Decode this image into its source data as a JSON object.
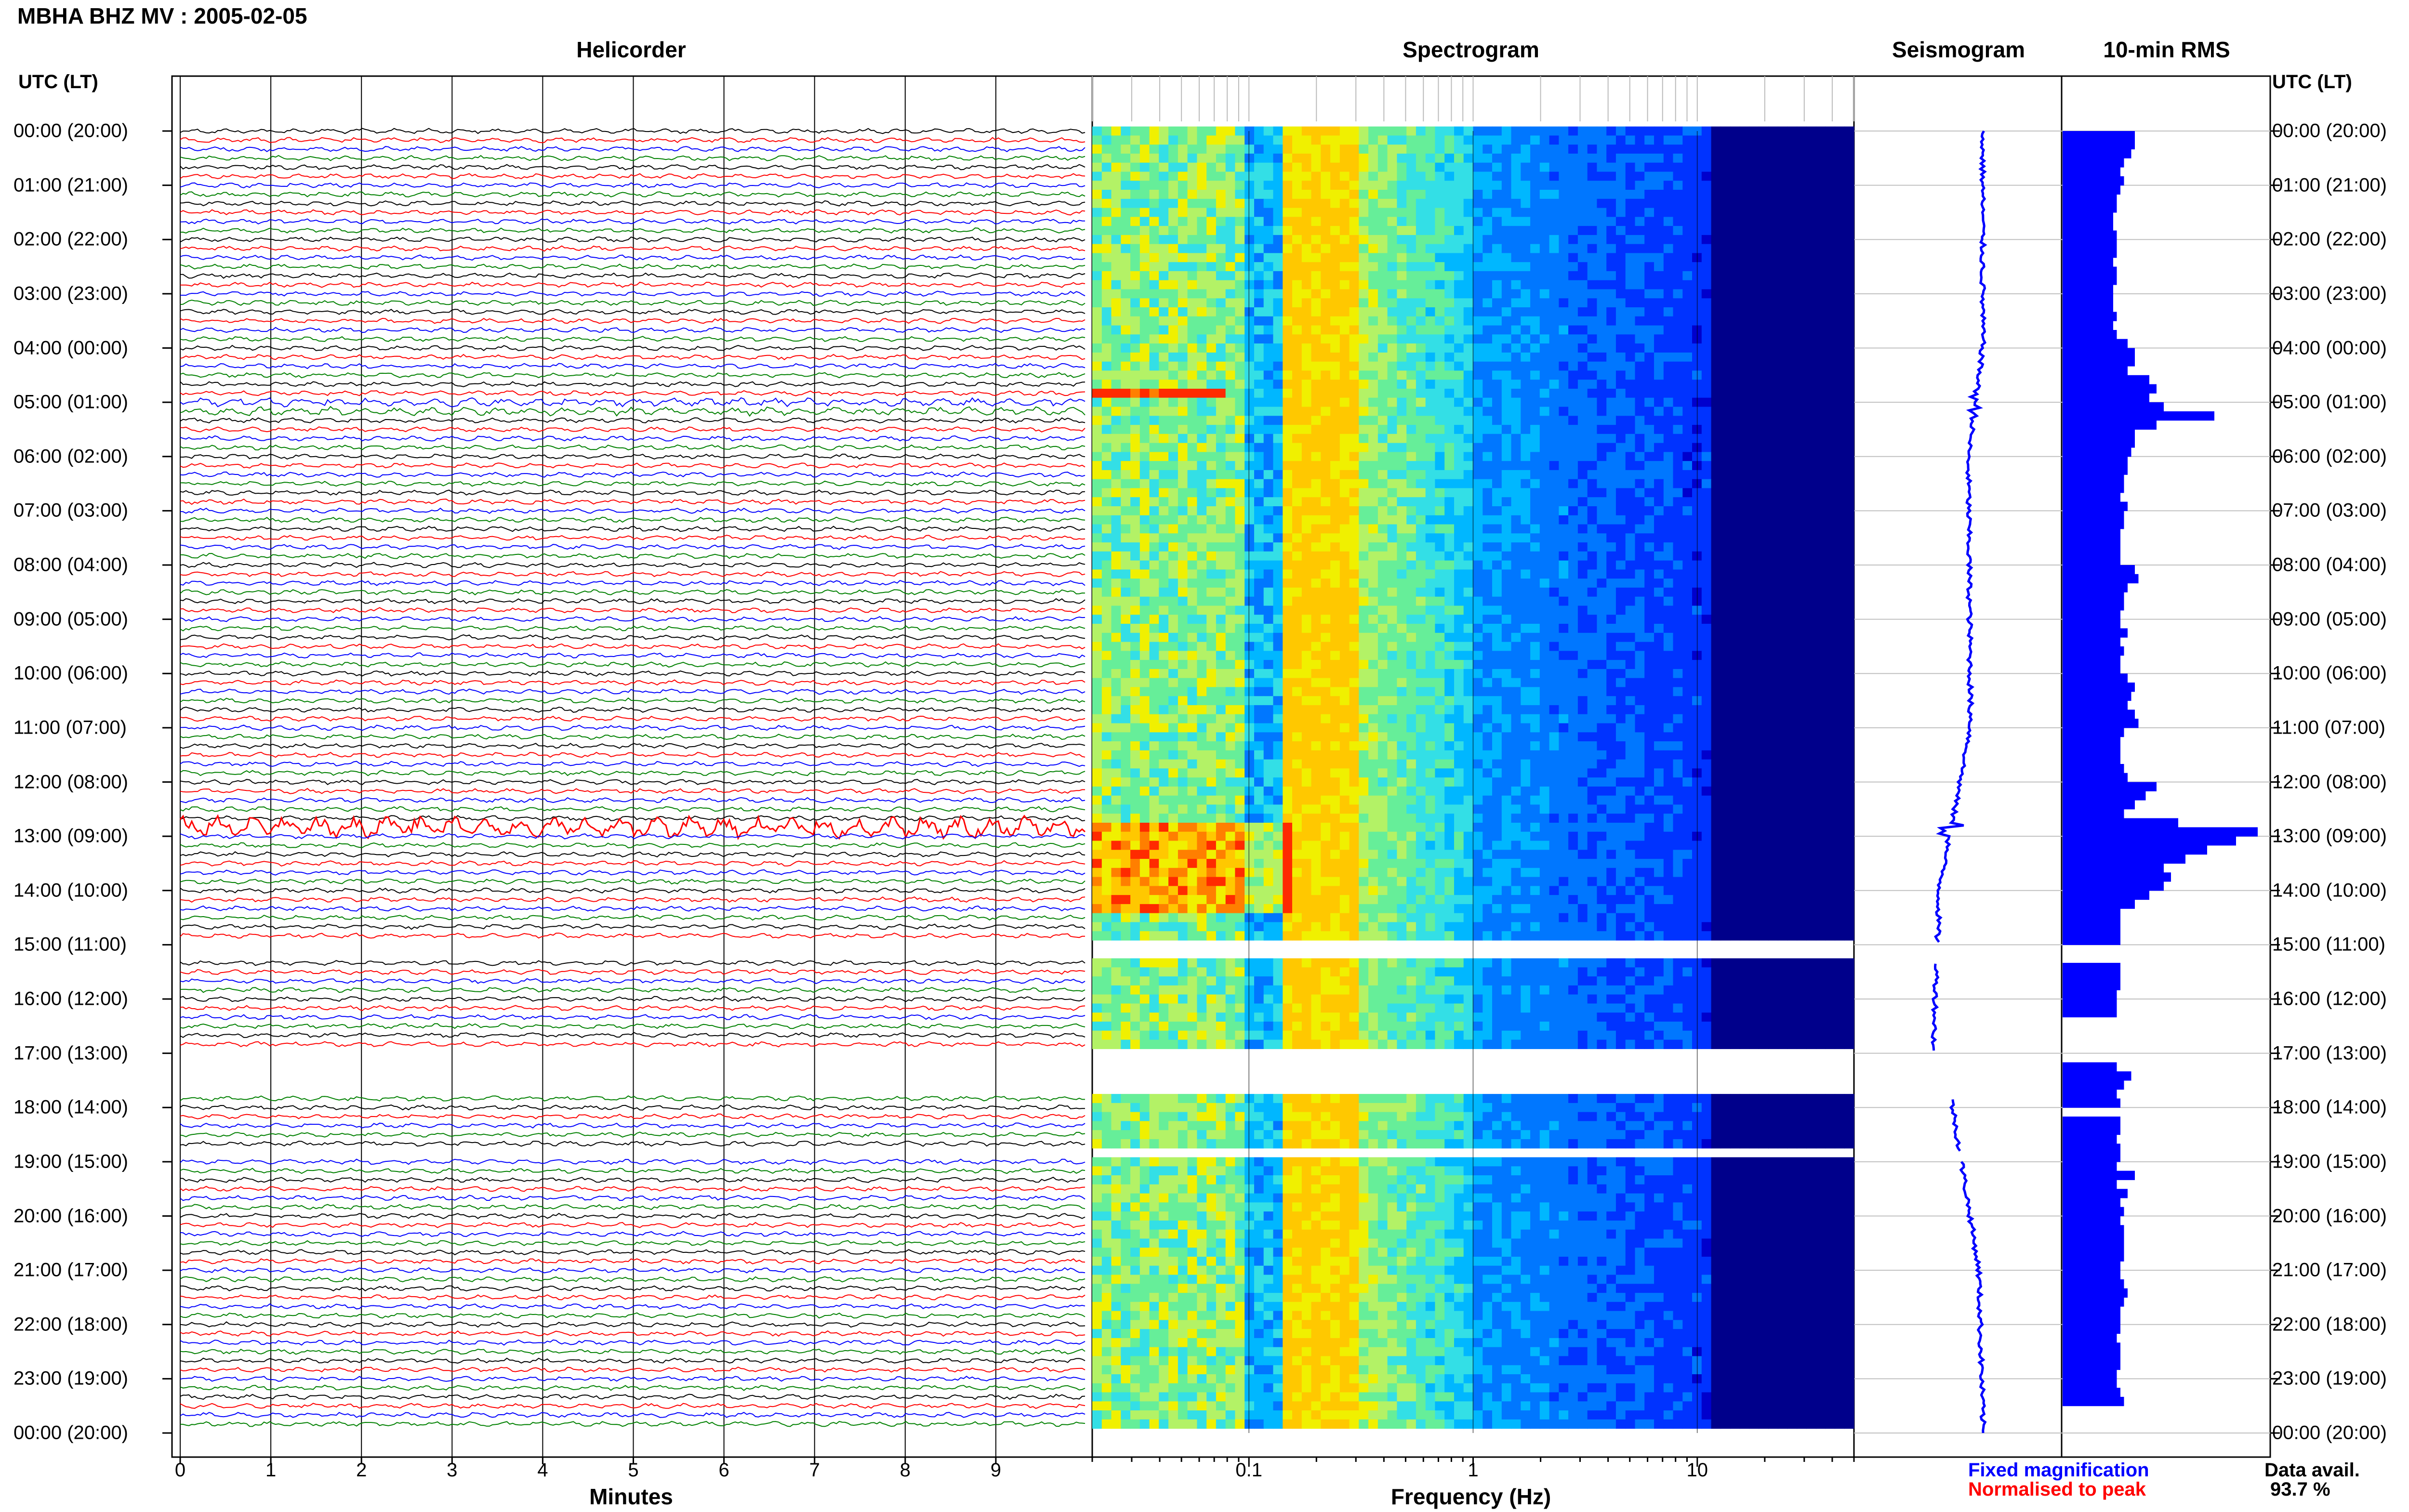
{
  "header": {
    "title": "MBHA BHZ MV : 2005-02-05"
  },
  "panels": {
    "helicorder": "Helicorder",
    "spectrogram": "Spectrogram",
    "seismogram": "Seismogram",
    "rms": "10-min RMS"
  },
  "axis_heads": {
    "left": "UTC (LT)",
    "right": "UTC (LT)"
  },
  "legend": {
    "fixed": "Fixed magnification",
    "normalised": "Normalised to peak",
    "fixed_color": "#0000ff",
    "normalised_color": "#ff0000"
  },
  "availability": {
    "label": "Data avail.",
    "value": "93.7 %"
  },
  "colors": {
    "trace_colors": [
      "#000000",
      "#ff0000",
      "#0000ff",
      "#008000"
    ],
    "rms_bar": "#0000ff",
    "seismogram": "#0000ff",
    "spectrogram_low": "#00008b",
    "spectrogram_high": "#ff0000"
  },
  "chart_data": [
    {
      "type": "line",
      "name": "helicorder",
      "title": "Helicorder",
      "xlabel": "Minutes",
      "ylabel": "UTC (LT)",
      "x_ticks": [
        "0",
        "1",
        "2",
        "3",
        "4",
        "5",
        "6",
        "7",
        "8",
        "9"
      ],
      "xlim": [
        0,
        10
      ],
      "y_ticks": [
        "00:00 (20:00)",
        "01:00 (21:00)",
        "02:00 (22:00)",
        "03:00 (23:00)",
        "04:00 (00:00)",
        "05:00 (01:00)",
        "06:00 (02:00)",
        "07:00 (03:00)",
        "08:00 (04:00)",
        "09:00 (05:00)",
        "10:00 (06:00)",
        "11:00 (07:00)",
        "12:00 (08:00)",
        "13:00 (09:00)",
        "14:00 (10:00)",
        "15:00 (11:00)",
        "16:00 (12:00)",
        "17:00 (13:00)",
        "18:00 (14:00)",
        "19:00 (15:00)",
        "20:00 (16:00)",
        "21:00 (17:00)",
        "22:00 (18:00)",
        "23:00 (19:00)",
        "00:00 (20:00)"
      ],
      "data_gaps_utc": [
        [
          "15:00",
          "15:20"
        ],
        [
          "17:00",
          "17:50"
        ],
        [
          "18:50",
          "19:00"
        ]
      ],
      "grid": true
    },
    {
      "type": "heatmap",
      "name": "spectrogram",
      "title": "Spectrogram",
      "xlabel": "Frequency (Hz)",
      "x_scale": "log",
      "x_ticks": [
        "0.1",
        "1",
        "10"
      ],
      "xlim": [
        0.02,
        50
      ]
    },
    {
      "type": "line",
      "name": "seismogram",
      "title": "Seismogram"
    },
    {
      "type": "bar",
      "name": "rms",
      "title": "10-min RMS",
      "orientation": "horizontal",
      "values": [
        1.0,
        1.0,
        0.95,
        0.85,
        0.8,
        0.85,
        0.8,
        0.75,
        0.75,
        0.7,
        0.7,
        0.75,
        0.75,
        0.75,
        0.7,
        0.75,
        0.75,
        0.7,
        0.7,
        0.7,
        0.75,
        0.7,
        0.75,
        0.9,
        1.0,
        1.0,
        0.9,
        1.2,
        1.3,
        1.2,
        1.4,
        2.1,
        1.3,
        1.0,
        1.0,
        0.95,
        0.9,
        0.9,
        0.85,
        0.85,
        0.8,
        0.9,
        0.85,
        0.85,
        0.8,
        0.8,
        0.8,
        0.8,
        1.0,
        1.05,
        0.9,
        0.85,
        0.85,
        0.8,
        0.8,
        0.9,
        0.8,
        0.85,
        0.8,
        0.8,
        0.9,
        1.0,
        0.95,
        0.9,
        1.0,
        1.05,
        0.85,
        0.8,
        0.8,
        0.8,
        0.85,
        0.9,
        1.3,
        1.15,
        1.0,
        0.85,
        1.6,
        2.7,
        2.4,
        2.0,
        1.7,
        1.4,
        1.5,
        1.4,
        1.2,
        1.0,
        0.8,
        0.8,
        0.8,
        0.8,
        null,
        null,
        0.8,
        0.8,
        0.8,
        0.75,
        0.75,
        0.75,
        null,
        null,
        null,
        null,
        null,
        0.75,
        0.95,
        0.85,
        0.75,
        0.8,
        null,
        0.8,
        0.8,
        0.75,
        0.8,
        0.8,
        0.75,
        1.0,
        0.75,
        0.9,
        0.8,
        0.85,
        0.8,
        0.85,
        0.85,
        0.85,
        0.85,
        0.8,
        0.8,
        0.85,
        0.9,
        0.85,
        0.8,
        0.8,
        0.8,
        0.75,
        0.8,
        0.8,
        0.8,
        0.75,
        0.75,
        0.8,
        0.85
      ]
    }
  ]
}
